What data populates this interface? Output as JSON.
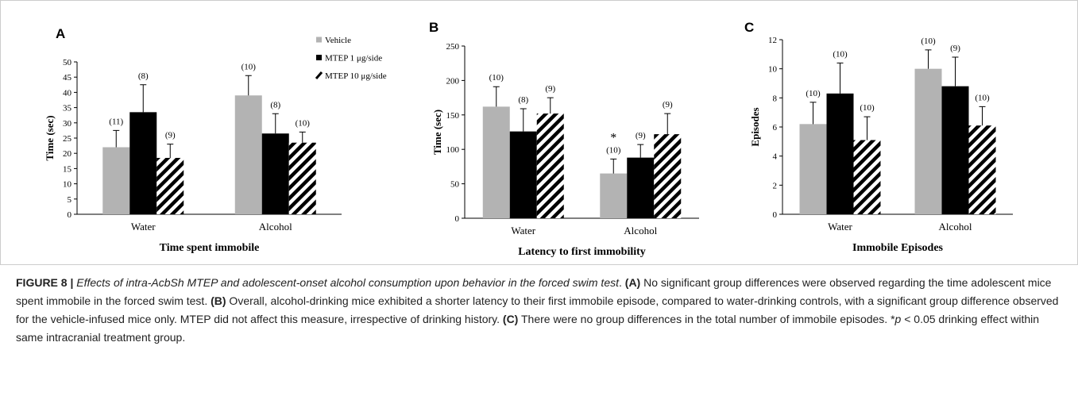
{
  "chart_data": [
    {
      "type": "bar",
      "panel": "A",
      "ylabel": "Time (sec)",
      "xlabel": "Time spent immobile",
      "categories": [
        "Water",
        "Alcohol"
      ],
      "ylim": [
        0,
        50
      ],
      "yticks": [
        0,
        5,
        10,
        15,
        20,
        25,
        30,
        35,
        40,
        45,
        50
      ],
      "legend": "top-right",
      "series": [
        {
          "name": "Vehicle",
          "color": "#b3b3b3",
          "values": [
            22,
            39
          ],
          "errors": [
            5.5,
            6.5
          ],
          "n_labels": [
            "(11)",
            "(10)"
          ]
        },
        {
          "name": "MTEP 1 μg/side",
          "color": "#000000",
          "values": [
            33.5,
            26.5
          ],
          "errors": [
            9,
            6.5
          ],
          "n_labels": [
            "(8)",
            "(8)"
          ]
        },
        {
          "name": "MTEP 10 μg/side",
          "color": "#000000",
          "pattern": "hatch",
          "values": [
            18.5,
            23.5
          ],
          "errors": [
            4.5,
            3.5
          ],
          "n_labels": [
            "(9)",
            "(10)"
          ]
        }
      ]
    },
    {
      "type": "bar",
      "panel": "B",
      "ylabel": "Time (sec)",
      "xlabel": "Latency to first immobility",
      "categories": [
        "Water",
        "Alcohol"
      ],
      "ylim": [
        0,
        250
      ],
      "yticks": [
        0,
        50,
        100,
        150,
        200,
        250
      ],
      "series": [
        {
          "color": "#b3b3b3",
          "values": [
            162,
            65
          ],
          "errors": [
            29,
            21
          ],
          "n_labels": [
            "(10)",
            "(10)"
          ],
          "markers": [
            null,
            "*"
          ]
        },
        {
          "color": "#000000",
          "values": [
            126,
            88
          ],
          "errors": [
            33,
            19
          ],
          "n_labels": [
            "(8)",
            "(9)"
          ]
        },
        {
          "color": "#000000",
          "pattern": "hatch",
          "values": [
            152,
            122
          ],
          "errors": [
            23,
            30
          ],
          "n_labels": [
            "(9)",
            "(9)"
          ]
        }
      ]
    },
    {
      "type": "bar",
      "panel": "C",
      "ylabel": "Episodes",
      "xlabel": "Immobile Episodes",
      "categories": [
        "Water",
        "Alcohol"
      ],
      "ylim": [
        0,
        12
      ],
      "yticks": [
        0,
        2,
        4,
        6,
        8,
        10,
        12
      ],
      "series": [
        {
          "color": "#b3b3b3",
          "values": [
            6.2,
            10
          ],
          "errors": [
            1.5,
            1.3
          ],
          "n_labels": [
            "(10)",
            "(10)"
          ]
        },
        {
          "color": "#000000",
          "values": [
            8.3,
            8.8
          ],
          "errors": [
            2.1,
            2
          ],
          "n_labels": [
            "(10)",
            "(9)"
          ]
        },
        {
          "color": "#000000",
          "pattern": "hatch",
          "values": [
            5.1,
            6.1
          ],
          "errors": [
            1.6,
            1.3
          ],
          "n_labels": [
            "(10)",
            "(10)"
          ]
        }
      ]
    }
  ],
  "caption": [
    {
      "style": "bold",
      "text": "FIGURE 8 | "
    },
    {
      "style": "italic",
      "text": "Effects of intra-AcbSh MTEP and adolescent-onset alcohol consumption upon behavior in the forced swim test"
    },
    {
      "style": "normal",
      "text": ". "
    },
    {
      "style": "bold",
      "text": "(A)"
    },
    {
      "style": "normal",
      "text": " No significant group differences were observed regarding the time adolescent mice spent immobile in the forced swim test. "
    },
    {
      "style": "bold",
      "text": "(B)"
    },
    {
      "style": "normal",
      "text": " Overall, alcohol-drinking mice exhibited a shorter latency to their first immobile episode, compared to water-drinking controls, with a significant group difference observed for the vehicle-infused mice only. MTEP did not affect this measure, irrespective of drinking history. "
    },
    {
      "style": "bold",
      "text": "(C)"
    },
    {
      "style": "normal",
      "text": " There were no group differences in the total number of immobile episodes. *"
    },
    {
      "style": "italic",
      "text": "p"
    },
    {
      "style": "normal",
      "text": " < 0.05 drinking effect within same intracranial treatment group."
    }
  ]
}
